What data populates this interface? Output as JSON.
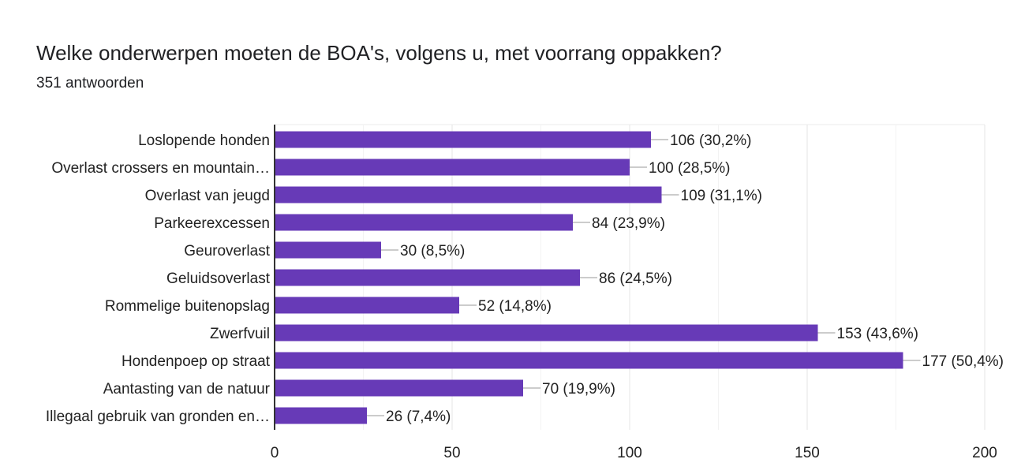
{
  "chart_data": {
    "type": "bar",
    "orientation": "horizontal",
    "title": "Welke onderwerpen moeten de BOA's, volgens u, met voorrang oppakken?",
    "subtitle": "351 antwoorden",
    "categories": [
      "Loslopende honden",
      "Overlast crossers en mountain…",
      "Overlast van jeugd",
      "Parkeerexcessen",
      "Geuroverlast",
      "Geluidsoverlast",
      "Rommelige buitenopslag",
      "Zwerfvuil",
      "Hondenpoep op straat",
      "Aantasting van de natuur",
      "Illegaal gebruik van gronden en…"
    ],
    "values": [
      106,
      100,
      109,
      84,
      30,
      86,
      52,
      153,
      177,
      70,
      26
    ],
    "data_labels": [
      "106 (30,2%)",
      "100 (28,5%)",
      "109 (31,1%)",
      "84 (23,9%)",
      "30 (8,5%)",
      "86 (24,5%)",
      "52 (14,8%)",
      "153 (43,6%)",
      "177 (50,4%)",
      "70 (19,9%)",
      "26 (7,4%)"
    ],
    "xlim": [
      0,
      200
    ],
    "xticks": [
      "0",
      "50",
      "100",
      "150",
      "200"
    ],
    "grid": true,
    "bar_color": "#673ab7"
  }
}
